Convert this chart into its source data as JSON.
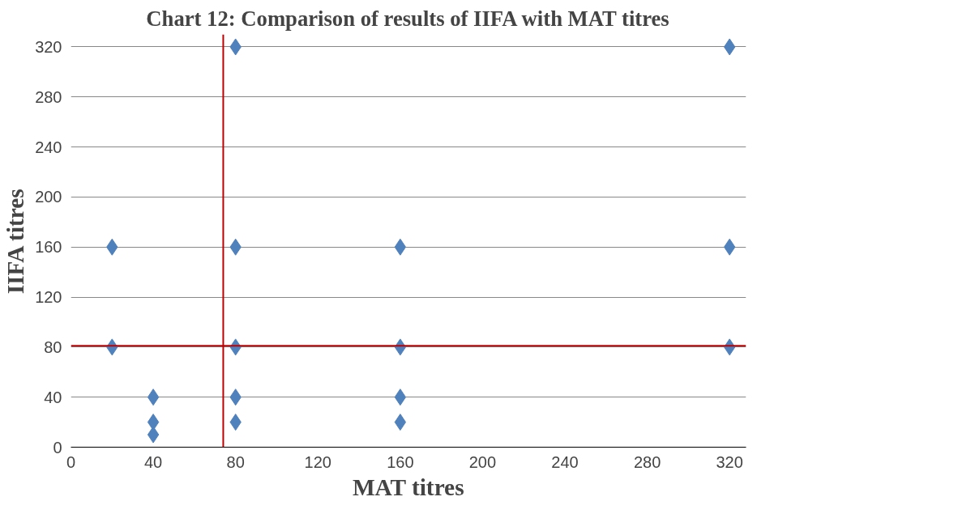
{
  "chart_data": {
    "type": "scatter",
    "title": "Chart 12: Comparison of results of IIFA with MAT titres",
    "xlabel": "MAT titres",
    "ylabel": "IIFA titres",
    "x": [
      20,
      20,
      40,
      40,
      40,
      80,
      80,
      80,
      80,
      80,
      160,
      160,
      160,
      160,
      320,
      320,
      320
    ],
    "series": [
      {
        "color": "#4f81bd",
        "values": [
          160,
          80,
          40,
          20,
          10,
          320,
          160,
          80,
          40,
          20,
          160,
          80,
          40,
          20,
          320,
          160,
          80
        ]
      }
    ],
    "xlim": [
      0,
      328
    ],
    "ylim": [
      0,
      330
    ],
    "xticks": [
      0,
      40,
      80,
      120,
      160,
      200,
      240,
      280,
      320
    ],
    "yticks": [
      0,
      40,
      80,
      120,
      160,
      200,
      240,
      280,
      320
    ],
    "grid": "y",
    "marker": "diamond",
    "ref_lines": [
      {
        "axis": "x",
        "value": 74,
        "color": "#c00000"
      },
      {
        "axis": "y",
        "value": 81,
        "color": "#c00000"
      }
    ]
  }
}
